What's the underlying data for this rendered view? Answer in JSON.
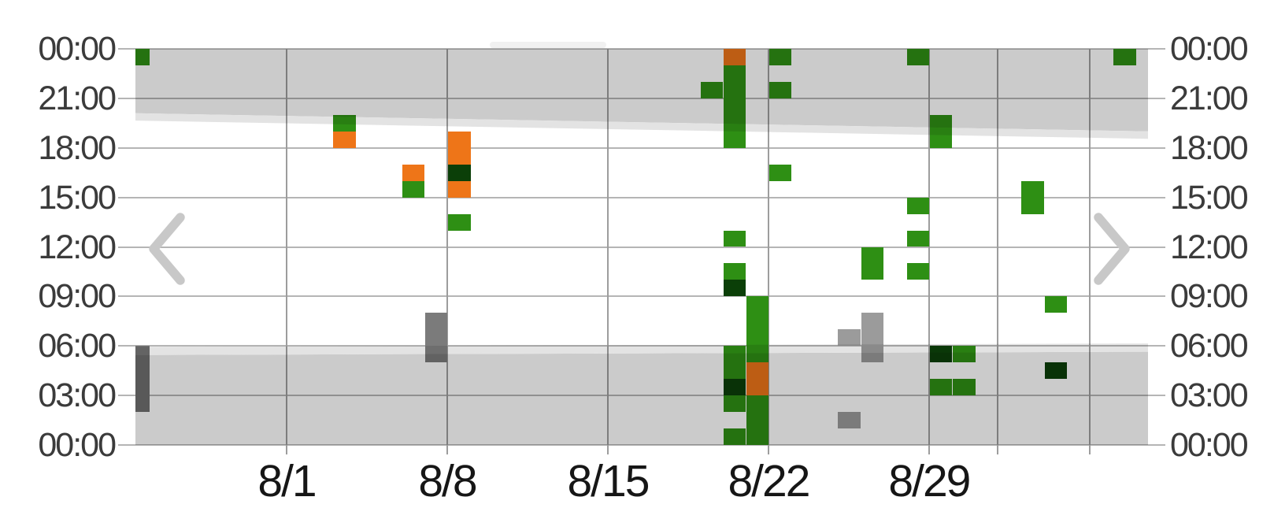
{
  "chart_data": {
    "type": "heatmap",
    "title": "",
    "x_unit": "date",
    "y_unit": "time-of-day",
    "x_tick_labels": [
      "8/1",
      "8/8",
      "8/15",
      "8/22",
      "8/29"
    ],
    "unlabeled_vertical_gridlines": [
      "9/1",
      "9/5"
    ],
    "visible_date_range": [
      "7/25",
      "9/7"
    ],
    "y_tick_labels": [
      "00:00",
      "21:00",
      "18:00",
      "15:00",
      "12:00",
      "09:00",
      "06:00",
      "03:00",
      "00:00"
    ],
    "y_axis_sides": [
      "left",
      "right"
    ],
    "y_range_hours": [
      0,
      24
    ],
    "grid": "on",
    "palette": {
      "green": "#2E8F14",
      "orange": "#EE7518",
      "dark_green": "#0B3F08",
      "gray_light": "#9B9B9B",
      "gray_mid": "#7B7B7B",
      "gray_dark": "#707070",
      "night_band": "#cbcbcb",
      "twilight_band": "#e3e3e3"
    },
    "events": [
      {
        "date": "7/25",
        "from": 23,
        "to": 24,
        "color": "green"
      },
      {
        "date": "7/25",
        "from": 2,
        "to": 6,
        "color": "gray_dark"
      },
      {
        "date": "8/3",
        "from": 19,
        "to": 20,
        "color": "green"
      },
      {
        "date": "8/3",
        "from": 18,
        "to": 19,
        "color": "orange"
      },
      {
        "date": "8/6",
        "from": 16,
        "to": 17,
        "color": "orange"
      },
      {
        "date": "8/6",
        "from": 15,
        "to": 16,
        "color": "green"
      },
      {
        "date": "8/7",
        "from": 5,
        "to": 8,
        "color": "gray_mid"
      },
      {
        "date": "8/8",
        "from": 17,
        "to": 19,
        "color": "orange"
      },
      {
        "date": "8/8",
        "from": 16,
        "to": 17,
        "color": "dark_green"
      },
      {
        "date": "8/8",
        "from": 15,
        "to": 16,
        "color": "orange"
      },
      {
        "date": "8/8",
        "from": 13,
        "to": 14,
        "color": "green"
      },
      {
        "date": "8/19",
        "from": 21,
        "to": 22,
        "color": "green"
      },
      {
        "date": "8/20",
        "from": 23,
        "to": 24,
        "color": "orange"
      },
      {
        "date": "8/20",
        "from": 18,
        "to": 23,
        "color": "green"
      },
      {
        "date": "8/20",
        "from": 12,
        "to": 13,
        "color": "green"
      },
      {
        "date": "8/20",
        "from": 10,
        "to": 11,
        "color": "green"
      },
      {
        "date": "8/20",
        "from": 9,
        "to": 10,
        "color": "dark_green"
      },
      {
        "date": "8/20",
        "from": 4,
        "to": 6,
        "color": "green"
      },
      {
        "date": "8/20",
        "from": 3,
        "to": 4,
        "color": "dark_green"
      },
      {
        "date": "8/20",
        "from": 2,
        "to": 3,
        "color": "green"
      },
      {
        "date": "8/20",
        "from": 0,
        "to": 1,
        "color": "green"
      },
      {
        "date": "8/21",
        "from": 5,
        "to": 9,
        "color": "green"
      },
      {
        "date": "8/21",
        "from": 3,
        "to": 5,
        "color": "orange"
      },
      {
        "date": "8/21",
        "from": 0,
        "to": 3,
        "color": "green"
      },
      {
        "date": "8/22",
        "from": 23,
        "to": 24,
        "color": "green"
      },
      {
        "date": "8/22",
        "from": 21,
        "to": 22,
        "color": "green"
      },
      {
        "date": "8/22",
        "from": 16,
        "to": 17,
        "color": "green"
      },
      {
        "date": "8/25",
        "from": 6,
        "to": 7,
        "color": "gray_light"
      },
      {
        "date": "8/25",
        "from": 1,
        "to": 2,
        "color": "gray_light"
      },
      {
        "date": "8/26",
        "from": 10,
        "to": 12,
        "color": "green"
      },
      {
        "date": "8/26",
        "from": 5,
        "to": 8,
        "color": "gray_light"
      },
      {
        "date": "8/28",
        "from": 23,
        "to": 24,
        "color": "green"
      },
      {
        "date": "8/28",
        "from": 14,
        "to": 15,
        "color": "green"
      },
      {
        "date": "8/28",
        "from": 12,
        "to": 13,
        "color": "green"
      },
      {
        "date": "8/28",
        "from": 10,
        "to": 11,
        "color": "green"
      },
      {
        "date": "8/29",
        "from": 18,
        "to": 20,
        "color": "green"
      },
      {
        "date": "8/29",
        "from": 5,
        "to": 6,
        "color": "dark_green"
      },
      {
        "date": "8/29",
        "from": 3,
        "to": 4,
        "color": "green"
      },
      {
        "date": "8/30",
        "from": 5,
        "to": 6,
        "color": "green"
      },
      {
        "date": "8/30",
        "from": 3,
        "to": 4,
        "color": "green"
      },
      {
        "date": "9/2",
        "from": 14,
        "to": 16,
        "color": "green"
      },
      {
        "date": "9/3",
        "from": 8,
        "to": 9,
        "color": "green"
      },
      {
        "date": "9/3",
        "from": 4,
        "to": 5,
        "color": "dark_green"
      },
      {
        "date": "9/6",
        "from": 23,
        "to": 24,
        "color": "green"
      }
    ],
    "night_shading": {
      "evening": {
        "edge_hour_left": 20.1,
        "edge_hour_right": 19.0,
        "twilight_extra_hours": 0.45
      },
      "morning": {
        "edge_hour_left": 5.45,
        "edge_hour_right": 5.65,
        "twilight_extra_hours": 0.5
      }
    },
    "nav": {
      "prev": "chevron-left",
      "next": "chevron-right"
    }
  }
}
